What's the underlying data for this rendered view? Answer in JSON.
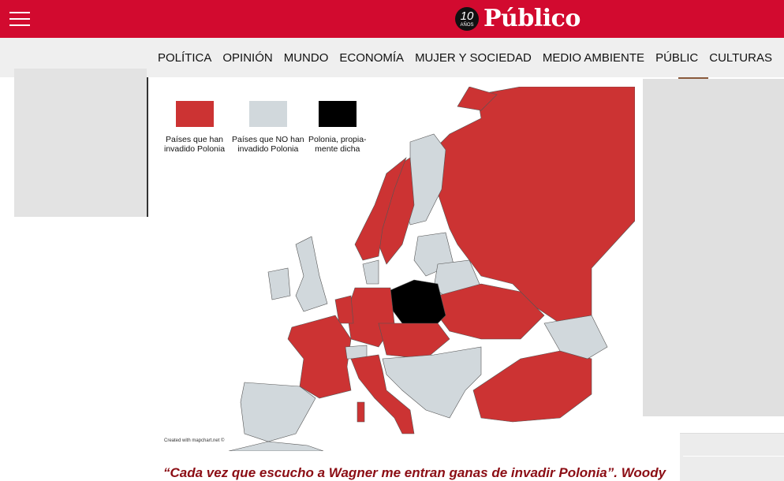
{
  "header": {
    "brand": "Público",
    "anniversary": "10",
    "anniversary_sub": "AÑOS",
    "menu_icon": "hamburger-icon",
    "color": "#d20a2f"
  },
  "nav": {
    "items": [
      "POLÍTICA",
      "OPINIÓN",
      "MUNDO",
      "ECONOMÍA",
      "MUJER Y SOCIEDAD",
      "MEDIO AMBIENTE",
      "PÚBLIC",
      "CULTURAS"
    ]
  },
  "map": {
    "legend": [
      {
        "line1": "Países que han",
        "line2": "invadido Polonia",
        "color": "#cc3333"
      },
      {
        "line1": "Países que NO han",
        "line2": "invadido Polonia",
        "color": "#d1d8dc"
      },
      {
        "line1": "Polonia, propia-",
        "line2": "mente dicha",
        "color": "#000000"
      }
    ],
    "credit": "Created with mapchart.net ©"
  },
  "article": {
    "quote": "“Cada vez que escucho a Wagner me entran ganas de invadir Polonia”. Woody"
  }
}
